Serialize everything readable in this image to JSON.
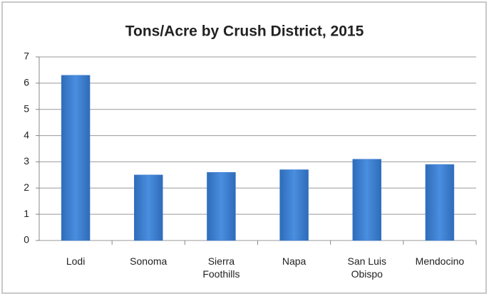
{
  "chart_data": {
    "type": "bar",
    "title": "Tons/Acre by Crush District, 2015",
    "categories": [
      "Lodi",
      "Sonoma",
      "Sierra Foothills",
      "Napa",
      "San Luis Obispo",
      "Mendocino"
    ],
    "values": [
      6.3,
      2.5,
      2.6,
      2.7,
      3.1,
      2.9
    ],
    "color": "#3a7bd0",
    "ylim": [
      0,
      7
    ],
    "yticks": [
      0,
      1,
      2,
      3,
      4,
      5,
      6,
      7
    ],
    "grid": true
  }
}
